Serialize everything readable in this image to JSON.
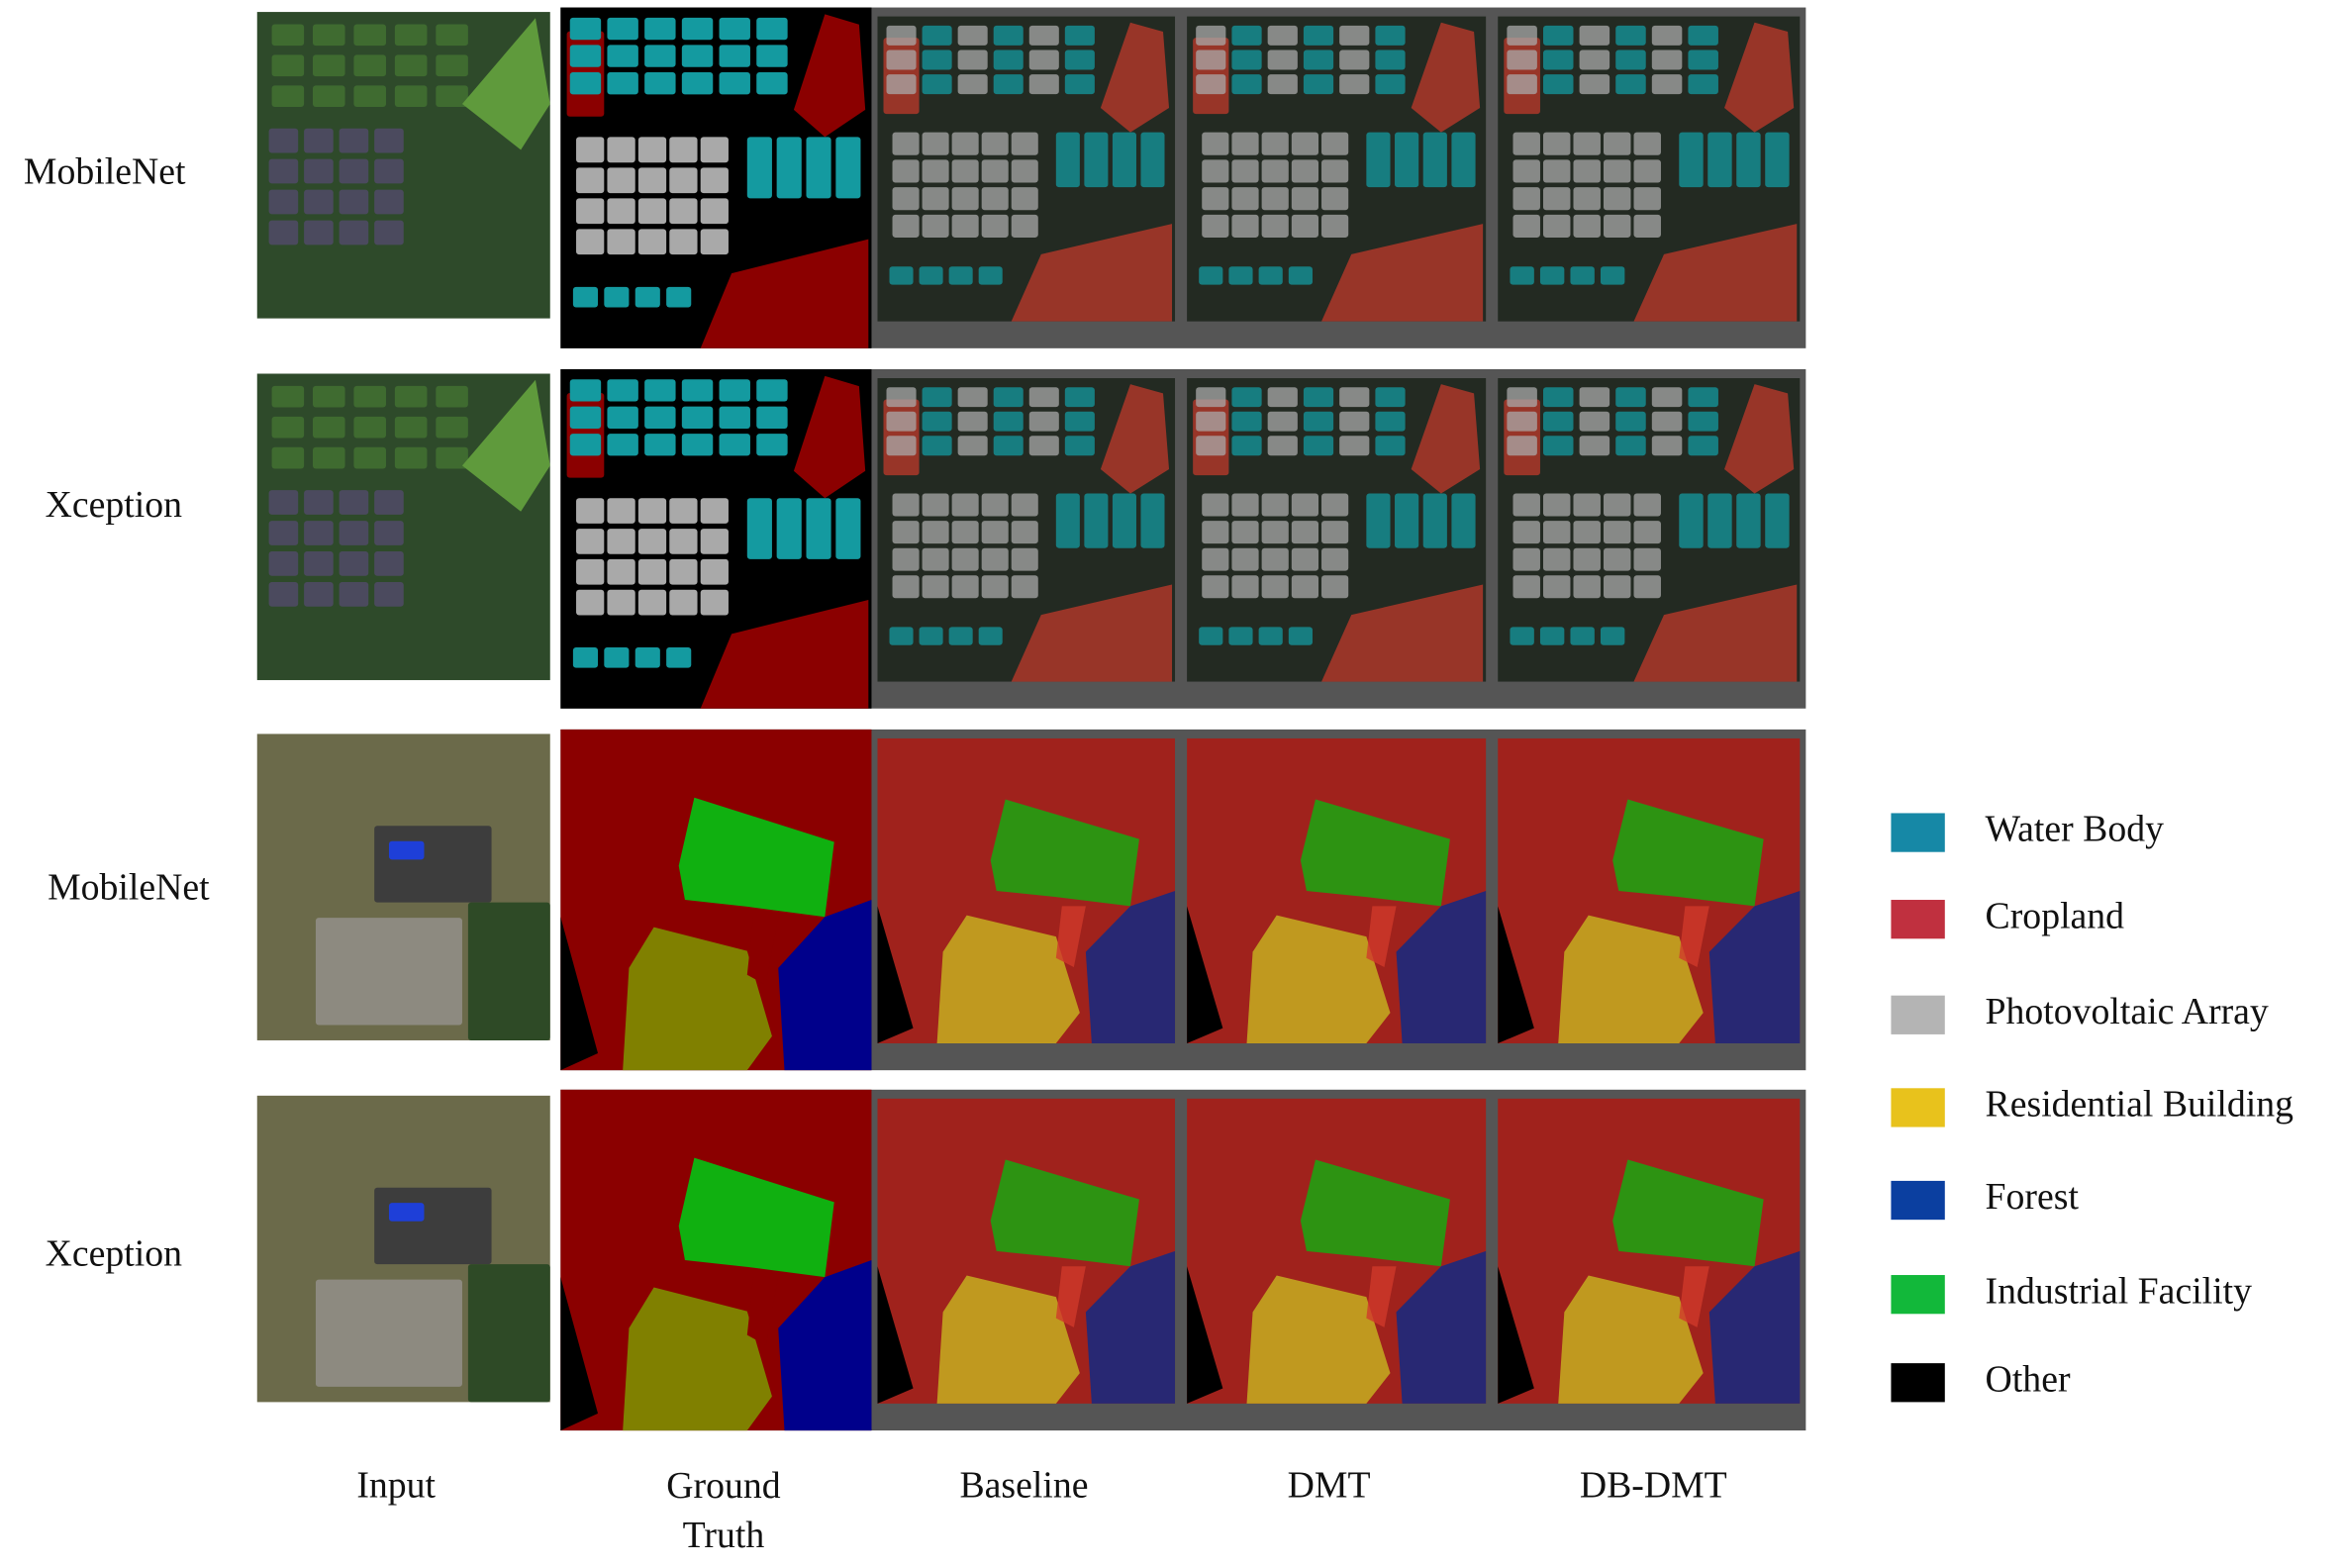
{
  "figure": {
    "rows": [
      {
        "label": "MobileNet"
      },
      {
        "label": "Xception"
      },
      {
        "label": "MobileNet"
      },
      {
        "label": "Xception"
      }
    ],
    "columns": [
      "Input",
      "Ground Truth",
      "Baseline",
      "DMT",
      "DB-DMT"
    ],
    "legend": [
      {
        "label": "Water Body",
        "color": "#1688a6"
      },
      {
        "label": "Cropland",
        "color": "#c0303f"
      },
      {
        "label": "Photovoltaic Array",
        "color": "#b4b4b4"
      },
      {
        "label": "Residential Building",
        "color": "#e8c21c"
      },
      {
        "label": "Forest",
        "color": "#0b3fa0"
      },
      {
        "label": "Industrial Facility",
        "color": "#12b83a"
      },
      {
        "label": "Other",
        "color": "#000000"
      }
    ]
  }
}
